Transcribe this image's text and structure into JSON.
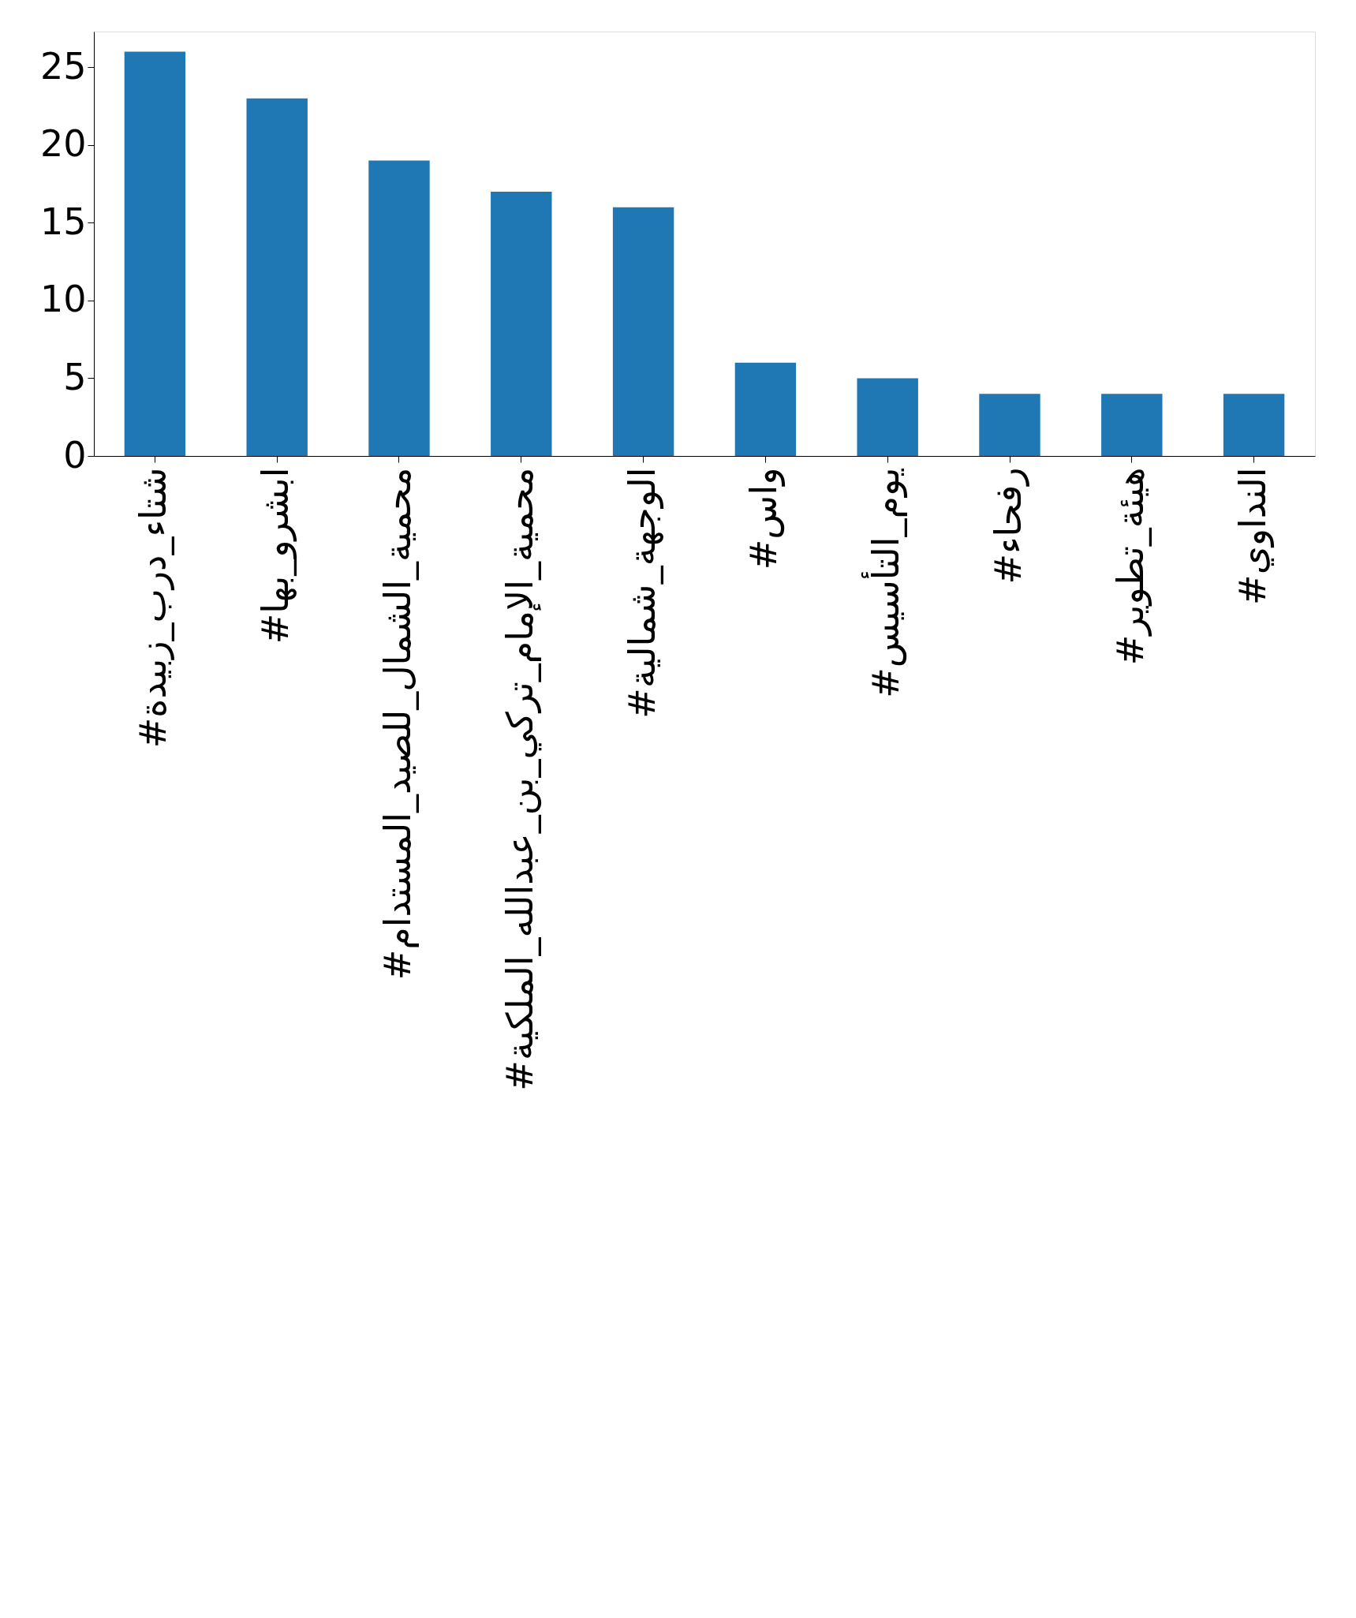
{
  "chart_data": {
    "type": "bar",
    "categories": [
      "#شتاء_درب_زبيدة",
      "#ابشرو_بها",
      "#محمية_الشمال_للصيد_المستدام",
      "#محمية_الإمام_تركي_بن_عبدالله_الملكية",
      "#الوجهة_شمالية",
      "#واس",
      "#يوم_التأسيس",
      "#رفحاء",
      "#هيئة_تطوير",
      "#النداوي"
    ],
    "values": [
      26,
      23,
      19,
      17,
      16,
      6,
      5,
      4,
      4,
      4
    ],
    "color": "#1f77b4",
    "ylim": [
      0,
      27.3
    ],
    "yticks": [
      0,
      5,
      10,
      15,
      20,
      25
    ],
    "grid": false
  }
}
